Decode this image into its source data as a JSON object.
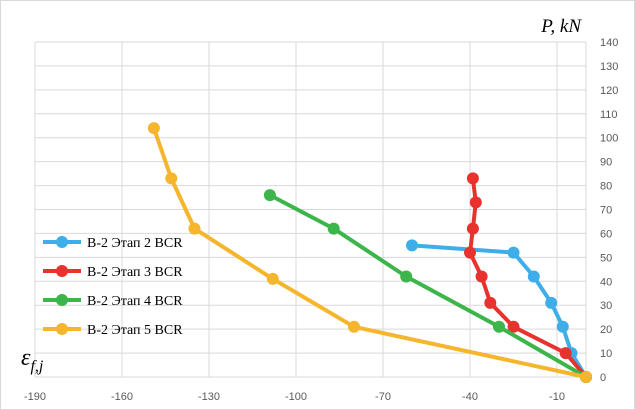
{
  "chart_data": {
    "type": "line",
    "ylabel": "P, kN",
    "xlabel_main": "ε",
    "xlabel_sub": "f,j",
    "xlim": [
      -190,
      0
    ],
    "ylim": [
      0,
      140
    ],
    "x_ticks": [
      -190,
      -160,
      -130,
      -100,
      -70,
      -40,
      -10
    ],
    "y_ticks": [
      0,
      10,
      20,
      30,
      40,
      50,
      60,
      70,
      80,
      90,
      100,
      110,
      120,
      130,
      140
    ],
    "grid": true,
    "legend_position": "left",
    "series": [
      {
        "name": "B-2 Этап 2 BCR",
        "color": "#3daee9",
        "points": [
          [
            0,
            0
          ],
          [
            -5,
            10
          ],
          [
            -8,
            21
          ],
          [
            -12,
            31
          ],
          [
            -18,
            42
          ],
          [
            -25,
            52
          ],
          [
            -60,
            55
          ]
        ]
      },
      {
        "name": "B-2 Этап 3 BCR",
        "color": "#e8322d",
        "points": [
          [
            0,
            0
          ],
          [
            -7,
            10
          ],
          [
            -25,
            21
          ],
          [
            -33,
            31
          ],
          [
            -36,
            42
          ],
          [
            -40,
            52
          ],
          [
            -39,
            62
          ],
          [
            -38,
            73
          ],
          [
            -39,
            83
          ]
        ]
      },
      {
        "name": "B-2 Этап 4 BCR",
        "color": "#3cb54a",
        "points": [
          [
            0,
            0
          ],
          [
            -30,
            21
          ],
          [
            -62,
            42
          ],
          [
            -87,
            62
          ],
          [
            -109,
            76
          ]
        ]
      },
      {
        "name": "B-2 Этап 5 BCR",
        "color": "#f5b52d",
        "points": [
          [
            0,
            0
          ],
          [
            -80,
            21
          ],
          [
            -108,
            41
          ],
          [
            -135,
            62
          ],
          [
            -143,
            83
          ],
          [
            -149,
            104
          ]
        ]
      }
    ]
  }
}
